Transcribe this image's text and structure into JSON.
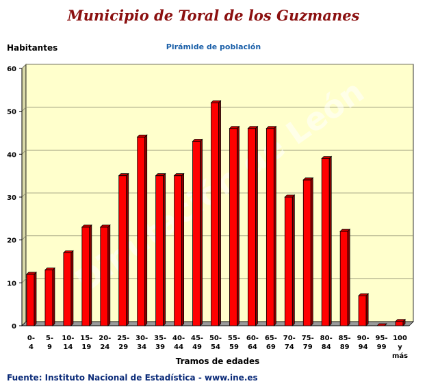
{
  "header": {
    "title": "Municipio de Toral de los Guzmanes",
    "subtitle": "Pirámide de población",
    "source": "Fuente: Instituto Nacional de Estadística - www.ine.es"
  },
  "watermark": "Diputación de León",
  "colors": {
    "bar_front": "#ff0000",
    "bar_side": "#8b0000",
    "bar_top": "#cc0000",
    "plot_background": "#ffffcc",
    "title": "#8b1010",
    "subtitle": "#1a5fa8",
    "source": "#0a2a78"
  },
  "chart_data": {
    "type": "bar",
    "title": "Pirámide de población",
    "xlabel": "Tramos de edades",
    "ylabel": "Habitantes",
    "ylim": [
      0,
      60
    ],
    "yticks": [
      0,
      10,
      20,
      30,
      40,
      50,
      60
    ],
    "grid": true,
    "categories": [
      "0-4",
      "5-9",
      "10-14",
      "15-19",
      "20-24",
      "25-29",
      "30-34",
      "35-39",
      "40-44",
      "45-49",
      "50-54",
      "55-59",
      "60-64",
      "65-69",
      "70-74",
      "75-79",
      "80-84",
      "85-89",
      "90-94",
      "95-99",
      "100 y más"
    ],
    "values": [
      12,
      13,
      17,
      23,
      23,
      35,
      44,
      35,
      35,
      43,
      52,
      46,
      46,
      46,
      30,
      34,
      39,
      22,
      7,
      0,
      1
    ]
  }
}
